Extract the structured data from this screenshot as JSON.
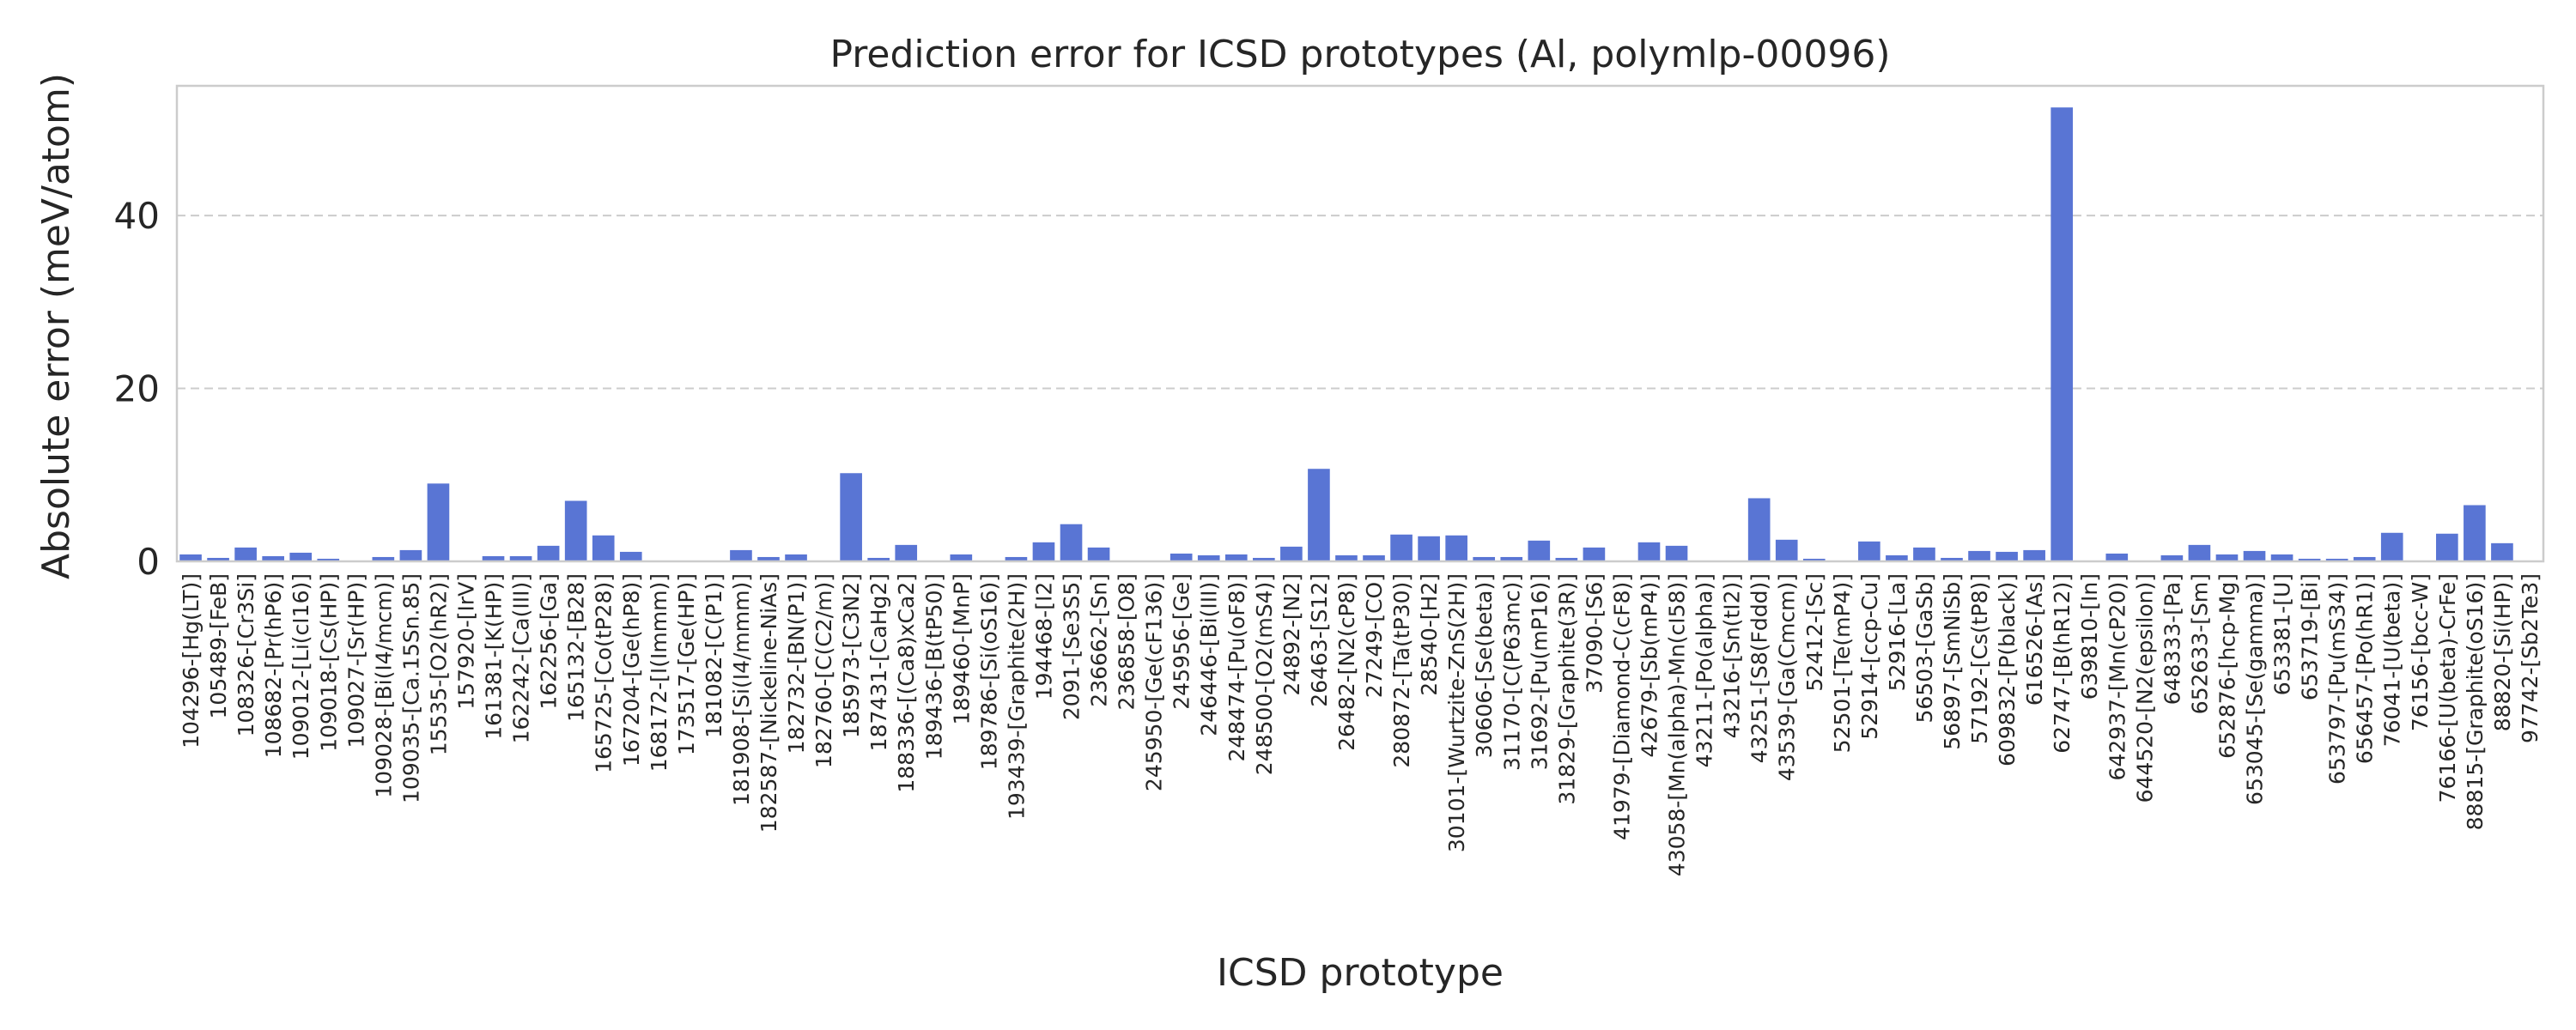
{
  "chart_data": {
    "type": "bar",
    "title": "Prediction error for ICSD prototypes (Al, polymlp-00096)",
    "xlabel": "ICSD prototype",
    "ylabel": "Absolute error (meV/atom)",
    "ylim": [
      0,
      55
    ],
    "yticks": [
      0,
      20,
      40
    ],
    "grid": "horizontal dashed",
    "bar_color": "#5975d4",
    "categories": [
      "104296-[Hg(LT)]",
      "105489-[FeB]",
      "108326-[Cr3Si]",
      "108682-[Pr(hP6)]",
      "109012-[Li(cI16)]",
      "109018-[Cs(HP)]",
      "109027-[Sr(HP)]",
      "109028-[Bi(I4/mcm)]",
      "109035-[Ca.15Sn.85]",
      "15535-[O2(hR2)]",
      "157920-[IrV]",
      "161381-[K(HP)]",
      "162242-[Ca(III)]",
      "162256-[Ga]",
      "165132-[B28]",
      "165725-[Co(tP28)]",
      "167204-[Ge(hP8)]",
      "168172-[I(Immm)]",
      "173517-[Ge(HP)]",
      "181082-[C(P1)]",
      "181908-[Si(I4/mmm)]",
      "182587-[Nickeline-NiAs]",
      "182732-[BN(P1)]",
      "182760-[C(C2/m)]",
      "185973-[C3N2]",
      "187431-[CaHg2]",
      "188336-[(Ca8)xCa2]",
      "189436-[B(tP50)]",
      "189460-[MnP]",
      "189786-[Si(oS16)]",
      "193439-[Graphite(2H)]",
      "194468-[I2]",
      "2091-[Se3S5]",
      "236662-[Sn]",
      "236858-[O8]",
      "245950-[Ge(cF136)]",
      "245956-[Ge]",
      "246446-[Bi(III)]",
      "248474-[Pu(oF8)]",
      "248500-[O2(mS4)]",
      "24892-[N2]",
      "26463-[S12]",
      "26482-[N2(cP8)]",
      "27249-[CO]",
      "280872-[Ta(tP30)]",
      "28540-[H2]",
      "30101-[Wurtzite-ZnS(2H)]",
      "30606-[Se(beta)]",
      "31170-[C(P63mc)]",
      "31692-[Pu(mP16)]",
      "31829-[Graphite(3R)]",
      "37090-[S6]",
      "41979-[Diamond-C(cF8)]",
      "42679-[Sb(mP4)]",
      "43058-[Mn(alpha)-Mn(cI58)]",
      "43211-[Po(alpha)]",
      "43216-[Sn(tI2)]",
      "43251-[S8(Fddd)]",
      "43539-[Ga(Cmcm)]",
      "52412-[Sc]",
      "52501-[Te(mP4)]",
      "52914-[ccp-Cu]",
      "52916-[La]",
      "56503-[GaSb]",
      "56897-[SmNiSb]",
      "57192-[Cs(tP8)]",
      "609832-[P(black)]",
      "616526-[As]",
      "62747-[B(hR12)]",
      "639810-[In]",
      "642937-[Mn(cP20)]",
      "644520-[N2(epsilon)]",
      "648333-[Pa]",
      "652633-[Sm]",
      "652876-[hcp-Mg]",
      "653045-[Se(gamma)]",
      "653381-[U]",
      "653719-[Bi]",
      "653797-[Pu(mS34)]",
      "656457-[Po(hR1)]",
      "76041-[U(beta)]",
      "76156-[bcc-W]",
      "76166-[U(beta)-CrFe]",
      "88815-[Graphite(oS16)]",
      "88820-[Si(HP)]",
      "97742-[Sb2Te3]"
    ],
    "values": [
      0.8,
      0.4,
      1.6,
      0.6,
      1.0,
      0.3,
      0.05,
      0.5,
      1.3,
      9.0,
      0.05,
      0.6,
      0.6,
      1.8,
      7.0,
      3.0,
      1.1,
      0.05,
      0.05,
      0.05,
      1.3,
      0.5,
      0.8,
      0.05,
      10.2,
      0.4,
      1.9,
      0.05,
      0.8,
      0.05,
      0.5,
      2.2,
      4.3,
      1.6,
      0.05,
      0.05,
      0.9,
      0.7,
      0.8,
      0.4,
      1.7,
      10.7,
      0.7,
      0.7,
      3.1,
      2.9,
      3.0,
      0.5,
      0.5,
      2.4,
      0.4,
      1.6,
      0.05,
      2.2,
      1.8,
      0.05,
      0.05,
      7.3,
      2.5,
      0.3,
      0.05,
      2.3,
      0.7,
      1.6,
      0.4,
      1.2,
      1.1,
      1.3,
      52.5,
      0.05,
      0.9,
      0.05,
      0.7,
      1.9,
      0.8,
      1.2,
      0.8,
      0.3,
      0.3,
      0.5,
      3.3,
      0.05,
      3.2,
      6.5,
      2.1,
      0.05
    ]
  }
}
